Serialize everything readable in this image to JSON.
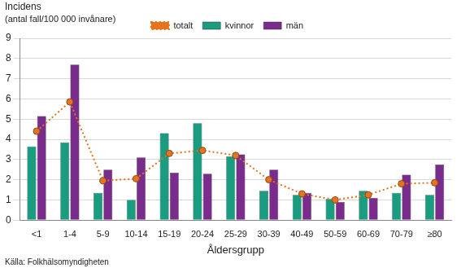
{
  "chart_data": {
    "type": "bar",
    "y_label": [
      "Incidens",
      "(antal fall/100 000 invånare)"
    ],
    "x_label": "Åldersgrupp",
    "source": "Källa: Folkhälsomyndigheten",
    "categories": [
      "<1",
      "1-4",
      "5-9",
      "10-14",
      "15-19",
      "20-24",
      "25-29",
      "30-39",
      "40-49",
      "50-59",
      "60-69",
      "70-79",
      "≥80"
    ],
    "series": [
      {
        "name": "kvinnor",
        "type": "bar",
        "color": "#1a9c80",
        "values": [
          3.65,
          3.85,
          1.35,
          1.0,
          4.3,
          4.8,
          3.15,
          1.45,
          1.25,
          1.05,
          1.45,
          1.35,
          1.25
        ]
      },
      {
        "name": "män",
        "type": "bar",
        "color": "#7a2c8c",
        "values": [
          5.15,
          7.7,
          2.5,
          3.1,
          2.35,
          2.3,
          3.25,
          2.5,
          1.35,
          0.9,
          1.1,
          2.25,
          2.75
        ]
      },
      {
        "name": "totalt",
        "type": "line",
        "color": "#e8731f",
        "line_style": "dotted",
        "marker": "circle",
        "values": [
          4.4,
          5.85,
          1.95,
          2.05,
          3.3,
          3.45,
          3.2,
          2.0,
          1.3,
          1.0,
          1.25,
          1.8,
          1.85
        ]
      }
    ],
    "ylim": [
      0,
      9
    ],
    "yticks": [
      0,
      1,
      2,
      3,
      4,
      5,
      6,
      7,
      8,
      9
    ],
    "grid": true,
    "legend": "top"
  }
}
